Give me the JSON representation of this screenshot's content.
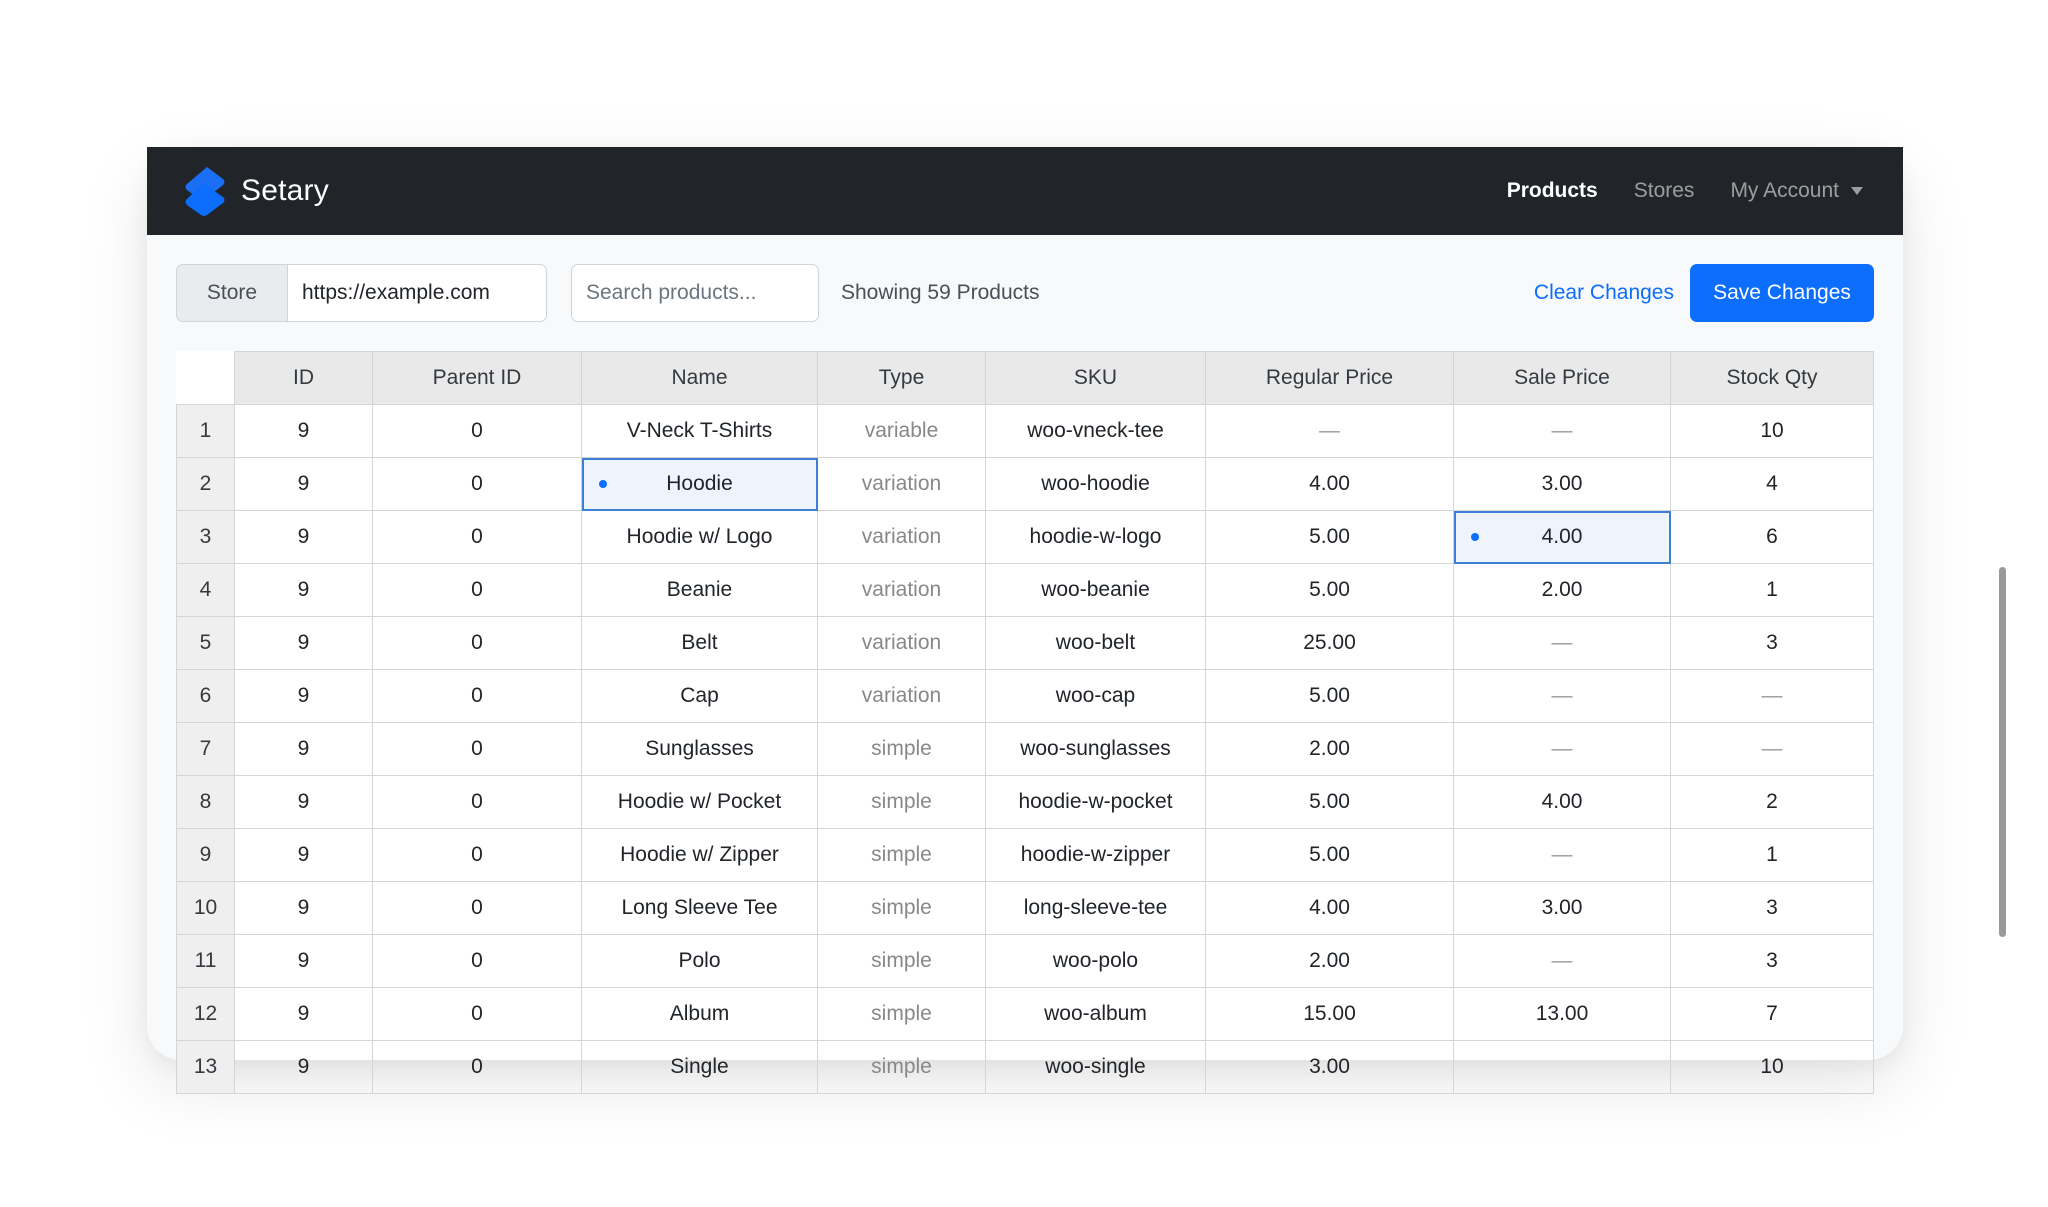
{
  "app": {
    "name": "Setary",
    "brand_color": "#0d6efd",
    "navbar_color": "#212529"
  },
  "nav": {
    "items": [
      {
        "label": "Products",
        "active": true
      },
      {
        "label": "Stores",
        "active": false
      },
      {
        "label": "My Account",
        "active": false,
        "dropdown": true
      }
    ]
  },
  "toolbar": {
    "store_label": "Store",
    "store_url": "https://example.com",
    "search_placeholder": "Search products...",
    "count_text": "Showing 59 Products",
    "clear_label": "Clear Changes",
    "save_label": "Save Changes"
  },
  "grid": {
    "columns": [
      "ID",
      "Parent ID",
      "Name",
      "Type",
      "SKU",
      "Regular Price",
      "Sale Price",
      "Stock Qty"
    ],
    "rows": [
      {
        "n": "1",
        "id": "9",
        "parent": "0",
        "name": "V-Neck T-Shirts",
        "type": "variable",
        "sku": "woo-vneck-tee",
        "regular": "—",
        "sale": "—",
        "stock": "10"
      },
      {
        "n": "2",
        "id": "9",
        "parent": "0",
        "name": "Hoodie",
        "type": "variation",
        "sku": "woo-hoodie",
        "regular": "4.00",
        "sale": "3.00",
        "stock": "4",
        "edited": [
          "name"
        ]
      },
      {
        "n": "3",
        "id": "9",
        "parent": "0",
        "name": "Hoodie w/ Logo",
        "type": "variation",
        "sku": "hoodie-w-logo",
        "regular": "5.00",
        "sale": "4.00",
        "stock": "6",
        "edited": [
          "sale"
        ]
      },
      {
        "n": "4",
        "id": "9",
        "parent": "0",
        "name": "Beanie",
        "type": "variation",
        "sku": "woo-beanie",
        "regular": "5.00",
        "sale": "2.00",
        "stock": "1"
      },
      {
        "n": "5",
        "id": "9",
        "parent": "0",
        "name": "Belt",
        "type": "variation",
        "sku": "woo-belt",
        "regular": "25.00",
        "sale": "—",
        "stock": "3"
      },
      {
        "n": "6",
        "id": "9",
        "parent": "0",
        "name": "Cap",
        "type": "variation",
        "sku": "woo-cap",
        "regular": "5.00",
        "sale": "—",
        "stock": "—"
      },
      {
        "n": "7",
        "id": "9",
        "parent": "0",
        "name": "Sunglasses",
        "type": "simple",
        "sku": "woo-sunglasses",
        "regular": "2.00",
        "sale": "—",
        "stock": "—"
      },
      {
        "n": "8",
        "id": "9",
        "parent": "0",
        "name": "Hoodie w/ Pocket",
        "type": "simple",
        "sku": "hoodie-w-pocket",
        "regular": "5.00",
        "sale": "4.00",
        "stock": "2"
      },
      {
        "n": "9",
        "id": "9",
        "parent": "0",
        "name": "Hoodie w/ Zipper",
        "type": "simple",
        "sku": "hoodie-w-zipper",
        "regular": "5.00",
        "sale": "—",
        "stock": "1"
      },
      {
        "n": "10",
        "id": "9",
        "parent": "0",
        "name": "Long Sleeve Tee",
        "type": "simple",
        "sku": "long-sleeve-tee",
        "regular": "4.00",
        "sale": "3.00",
        "stock": "3"
      },
      {
        "n": "11",
        "id": "9",
        "parent": "0",
        "name": "Polo",
        "type": "simple",
        "sku": "woo-polo",
        "regular": "2.00",
        "sale": "—",
        "stock": "3"
      },
      {
        "n": "12",
        "id": "9",
        "parent": "0",
        "name": "Album",
        "type": "simple",
        "sku": "woo-album",
        "regular": "15.00",
        "sale": "13.00",
        "stock": "7"
      },
      {
        "n": "13",
        "id": "9",
        "parent": "0",
        "name": "Single",
        "type": "simple",
        "sku": "woo-single",
        "regular": "3.00",
        "sale": "",
        "stock": "10"
      }
    ]
  }
}
